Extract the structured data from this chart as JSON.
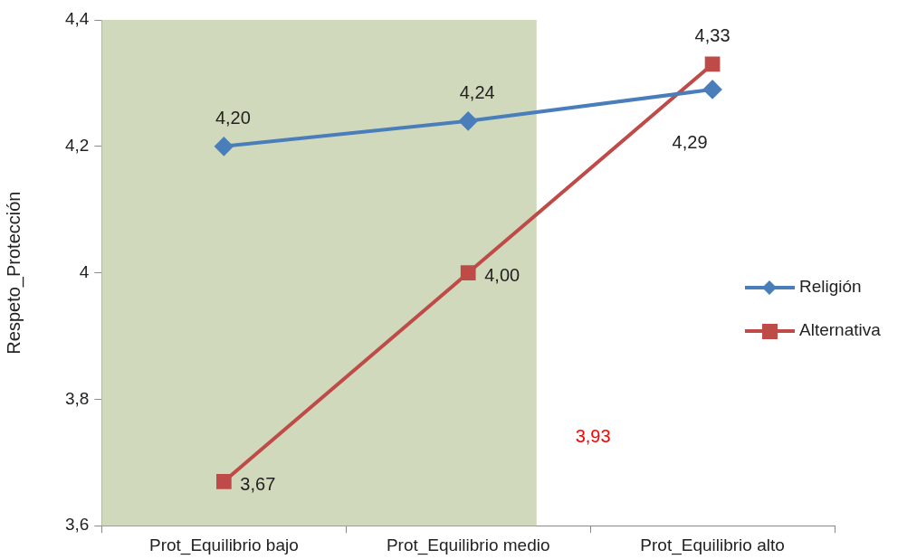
{
  "chart_data": {
    "type": "line",
    "ylabel": "Respeto_Protección",
    "categories": [
      "Prot_Equilibrio bajo",
      "Prot_Equilibrio medio",
      "Prot_Equilibrio alto"
    ],
    "series": [
      {
        "name": "Religión",
        "color": "#4a7ebb",
        "marker": "diamond",
        "values": [
          4.2,
          4.24,
          4.29
        ],
        "value_labels": [
          "4,20",
          "4,24",
          "4,29"
        ]
      },
      {
        "name": "Alternativa",
        "color": "#be4b48",
        "marker": "square",
        "values": [
          3.67,
          4.0,
          4.33
        ],
        "value_labels": [
          "3,67",
          "4,00",
          "4,33"
        ]
      }
    ],
    "ylim": [
      3.6,
      4.4
    ],
    "yticks": [
      {
        "value": 3.6,
        "label": "3,6"
      },
      {
        "value": 3.8,
        "label": "3,8"
      },
      4,
      {
        "value": 4.2,
        "label": "4,2"
      },
      {
        "value": 4.4,
        "label": "4,4"
      }
    ],
    "bands": [
      {
        "axis": "x",
        "from": "Prot_Equilibrio bajo",
        "to": "Prot_Equilibrio medio",
        "color": "#d0d9bc"
      }
    ],
    "annotations": [
      "3,93"
    ],
    "legend": "right",
    "grid": false,
    "line_style": "solid"
  }
}
